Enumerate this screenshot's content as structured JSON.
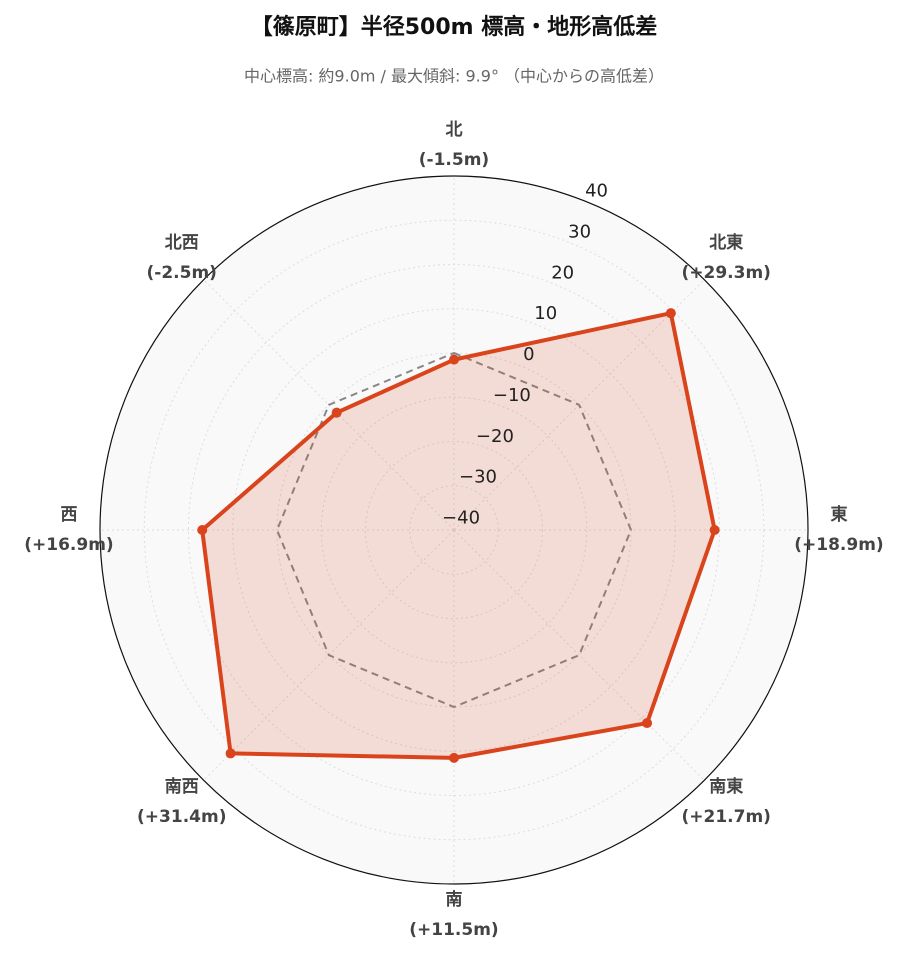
{
  "chart_data": {
    "type": "radar",
    "title": "【篠原町】半径500m 標高・地形高低差",
    "subtitle": "中心標高: 約9.0m / 最大傾斜: 9.9° （中心からの高低差）",
    "categories": [
      "北",
      "北東",
      "東",
      "南東",
      "南",
      "南西",
      "西",
      "北西"
    ],
    "values": [
      -1.5,
      29.3,
      18.9,
      21.7,
      11.5,
      31.4,
      16.9,
      -2.5
    ],
    "value_labels": [
      "(-1.5m)",
      "(+29.3m)",
      "(+18.9m)",
      "(+21.7m)",
      "(+11.5m)",
      "(+31.4m)",
      "(+16.9m)",
      "(-2.5m)"
    ],
    "color": "#d9441c",
    "baseline": 0,
    "ylim": [
      -40,
      40
    ],
    "yticks": [
      {
        "value": -40,
        "label": "−40"
      },
      {
        "value": -30,
        "label": "−30"
      },
      {
        "value": -20,
        "label": "−20"
      },
      {
        "value": -10,
        "label": "−10"
      },
      0,
      10,
      20,
      30,
      40
    ],
    "grid": true
  }
}
